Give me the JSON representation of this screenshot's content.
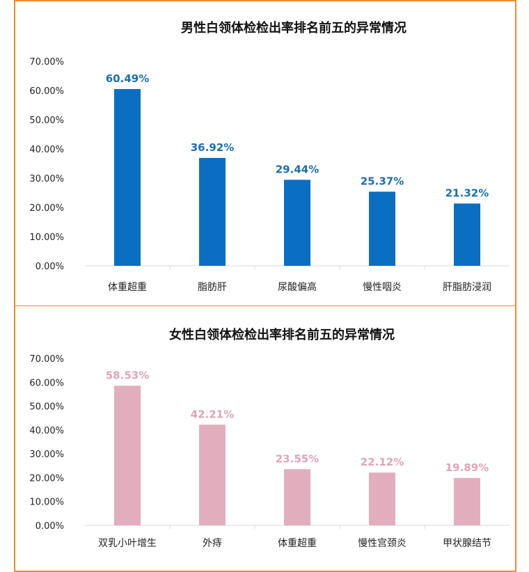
{
  "chart_data": [
    {
      "type": "bar",
      "title": "男性白领体检检出率排名前五的异常情况",
      "categories": [
        "体重超重",
        "脂肪肝",
        "尿酸偏高",
        "慢性咽炎",
        "肝脂肪浸润"
      ],
      "values": [
        60.49,
        36.92,
        29.44,
        25.37,
        21.32
      ],
      "value_labels": [
        "60.49%",
        "36.92%",
        "29.44%",
        "25.37%",
        "21.32%"
      ],
      "y_ticks": [
        "0.00%",
        "10.00%",
        "20.00%",
        "30.00%",
        "40.00%",
        "50.00%",
        "60.00%",
        "70.00%"
      ],
      "ylim": [
        0,
        70
      ],
      "xlabel": "",
      "ylabel": "",
      "grid": false,
      "bar_color": "#0a6fc2",
      "label_color": "#1a6faf"
    },
    {
      "type": "bar",
      "title": "女性白领体检检出率排名前五的异常情况",
      "categories": [
        "双乳小叶增生",
        "外痔",
        "体重超重",
        "慢性宫颈炎",
        "甲状腺结节"
      ],
      "values": [
        58.53,
        42.21,
        23.55,
        22.12,
        19.89
      ],
      "value_labels": [
        "58.53%",
        "42.21%",
        "23.55%",
        "22.12%",
        "19.89%"
      ],
      "y_ticks": [
        "0.00%",
        "10.00%",
        "20.00%",
        "30.00%",
        "40.00%",
        "50.00%",
        "60.00%",
        "70.00%"
      ],
      "ylim": [
        0,
        70
      ],
      "xlabel": "",
      "ylabel": "",
      "grid": false,
      "bar_color": "#e2aebe",
      "label_color": "#e0a4b6"
    }
  ],
  "colors": {
    "border": "#ef8a2e",
    "axis": "#d9d9d9"
  }
}
